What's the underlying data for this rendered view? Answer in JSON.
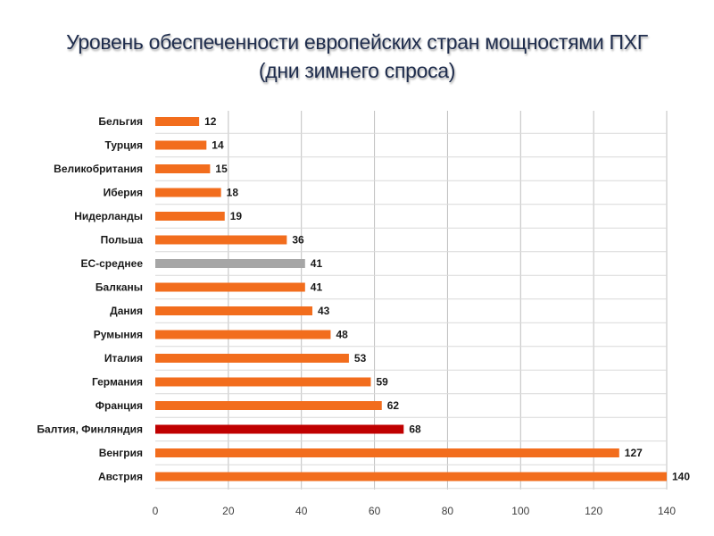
{
  "title_line1": "Уровень обеспеченности европейских стран мощностями ПХГ",
  "title_line2": "(дни зимнего спроса)",
  "chart_data": {
    "type": "bar",
    "orientation": "horizontal",
    "title": "Уровень обеспеченности европейских стран мощностями ПХГ (дни зимнего спроса)",
    "xlim": [
      0,
      140
    ],
    "xticks": [
      0,
      20,
      40,
      60,
      80,
      100,
      120,
      140
    ],
    "grid": true,
    "categories": [
      "Бельгия",
      "Турция",
      "Великобритания",
      "Иберия",
      "Нидерланды",
      "Польша",
      "ЕС-среднее",
      "Балканы",
      "Дания",
      "Румыния",
      "Италия",
      "Германия",
      "Франция",
      "Балтия, Финляндия",
      "Венгрия",
      "Австрия"
    ],
    "values": [
      12,
      14,
      15,
      18,
      19,
      36,
      41,
      41,
      43,
      48,
      53,
      59,
      62,
      68,
      127,
      140
    ],
    "value_labels": [
      "12",
      "14",
      "15",
      "18",
      "19",
      "36",
      "41",
      "41",
      "43",
      "48",
      "53",
      "59",
      "62",
      "68",
      "127",
      "140"
    ],
    "bar_colors": {
      "default": "#f26d1d",
      "ЕС-среднее": "#a6a6a6",
      "Балтия, Финляндия": "#c00000"
    }
  }
}
